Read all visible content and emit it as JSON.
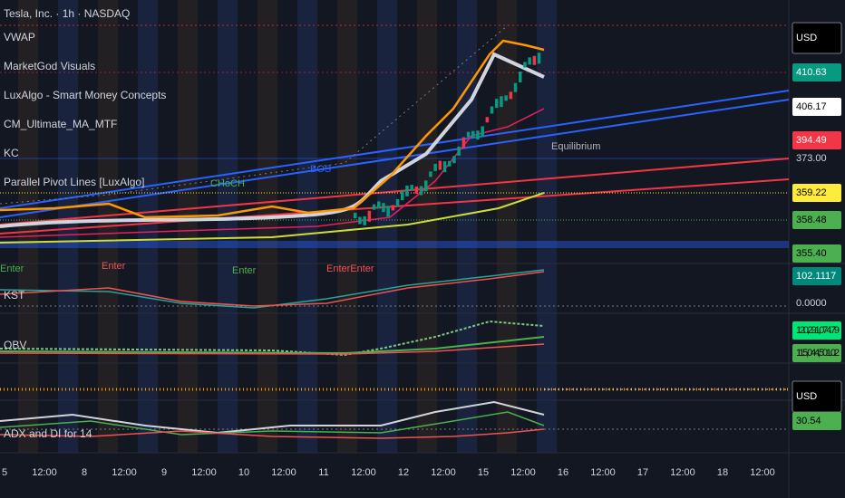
{
  "header": {
    "symbol": "Tesla, Inc. · 1h · NASDAQ"
  },
  "indicators": [
    "VWAP",
    "MarketGod Visuals",
    "LuxAlgo - Smart Money Concepts",
    "CM_Ultimate_MA_MTF",
    "KC",
    "Parallel Pivot Lines [LuxAlgo]"
  ],
  "panes": [
    "KST",
    "OBV",
    "ADX and DI for 14"
  ],
  "annotations": {
    "equilibrium": "Equilibrium",
    "bos": "BOS",
    "choch": "CHoCH",
    "enter": [
      "Enter",
      "Enter",
      "Enter",
      "EnterEnter"
    ]
  },
  "price_axis": [
    "USD",
    "410.63",
    "406.17",
    "394.49",
    "373.00",
    "359.22",
    "358.48",
    "355.40",
    "102.1117",
    "0.0000",
    "120,291,074.79",
    "115,044,501.02",
    "USD",
    "30.54"
  ],
  "time_axis": [
    "5",
    "12:00",
    "8",
    "12:00",
    "9",
    "12:00",
    "10",
    "12:00",
    "11",
    "12:00",
    "12",
    "12:00",
    "15",
    "12:00",
    "16",
    "12:00",
    "17",
    "12:00",
    "18",
    "12:00"
  ]
}
